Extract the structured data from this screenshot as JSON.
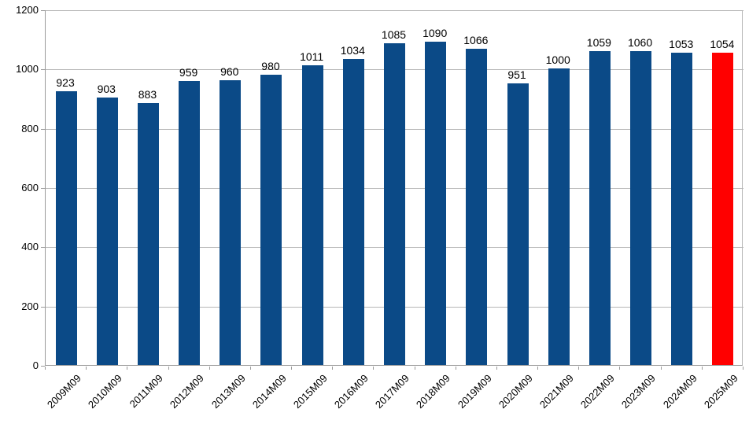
{
  "chart_data": {
    "type": "bar",
    "title": "",
    "xlabel": "",
    "ylabel": "",
    "categories": [
      "2009M09",
      "2010M09",
      "2011M09",
      "2012M09",
      "2013M09",
      "2014M09",
      "2015M09",
      "2016M09",
      "2017M09",
      "2018M09",
      "2019M09",
      "2020M09",
      "2021M09",
      "2022M09",
      "2023M09",
      "2024M09",
      "2025M09"
    ],
    "values": [
      923,
      903,
      883,
      959,
      960,
      980,
      1011,
      1034,
      1085,
      1090,
      1066,
      951,
      1000,
      1059,
      1060,
      1053,
      1054
    ],
    "highlight_index": 16,
    "value_labels_shown": true,
    "x_label_rotation_deg": 45,
    "ylim": [
      0,
      1200
    ],
    "ytick_interval": 200,
    "ytick_labels": [
      "0",
      "200",
      "400",
      "600",
      "800",
      "1000",
      "1200"
    ],
    "grid": true,
    "legend": "none",
    "colors": {
      "bar_default": "#0b4a87",
      "bar_highlight": "#ff0000",
      "gridline": "#b6b6b6",
      "axis": "#9b9b9b",
      "text": "#000000",
      "background": "#ffffff"
    }
  }
}
